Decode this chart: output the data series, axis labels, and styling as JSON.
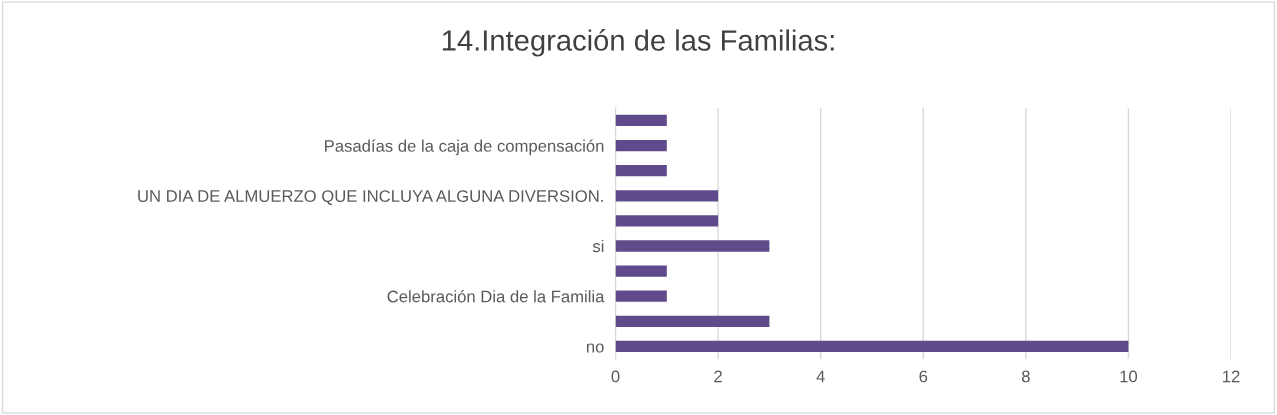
{
  "chart_data": {
    "type": "bar",
    "orientation": "horizontal",
    "title": "14.Integración de las Familias:",
    "categories": [
      null,
      "Pasadías de la caja de compensación",
      null,
      "UN DIA DE ALMUERZO QUE INCLUYA ALGUNA DIVERSION.",
      null,
      "si",
      null,
      "Celebración Dia de la Familia",
      null,
      "no"
    ],
    "values": [
      1,
      1,
      1,
      2,
      2,
      3,
      1,
      1,
      3,
      10
    ],
    "color": "#5f4b8b",
    "xlim": [
      0,
      12
    ],
    "xticks": [
      0,
      2,
      4,
      6,
      8,
      10,
      12
    ],
    "grid": "x",
    "legend": false
  }
}
